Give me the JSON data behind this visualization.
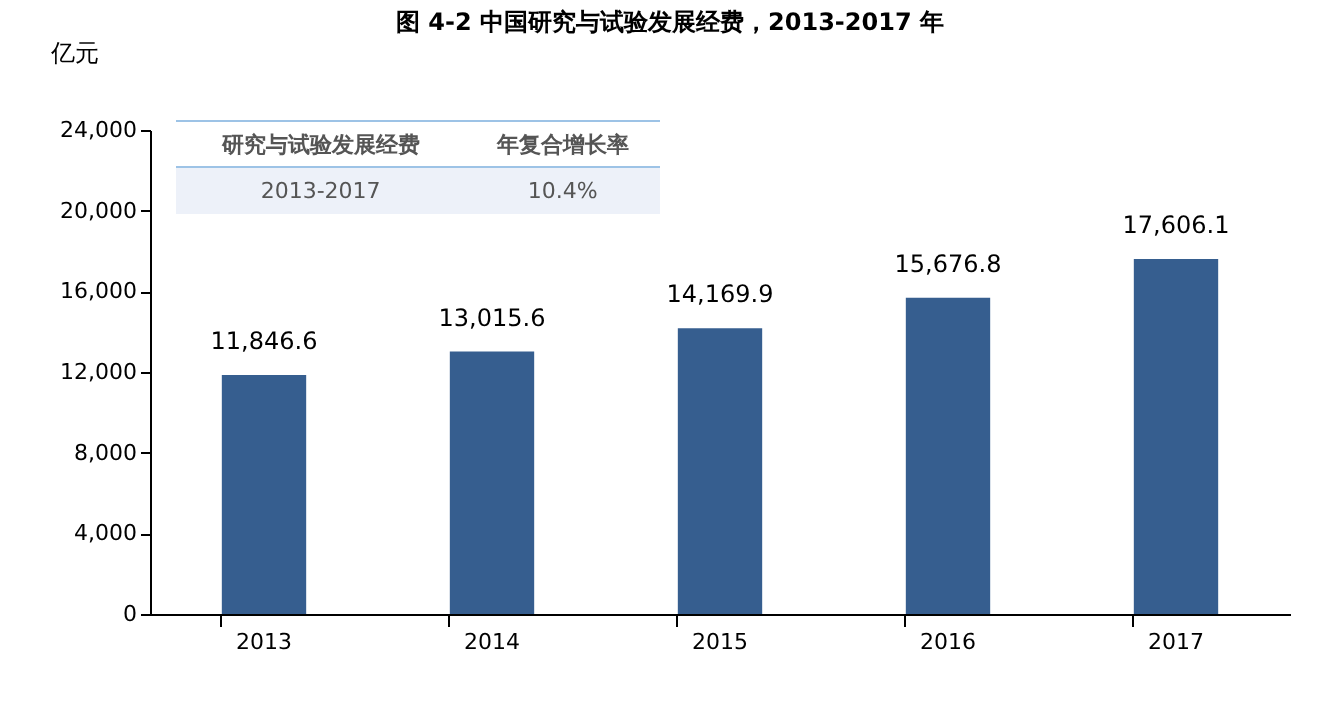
{
  "chart_data": {
    "type": "bar",
    "title": "图  4-2  中国研究与试验发展经费，2013-2017 年",
    "ylabel": "亿元",
    "categories": [
      "2013",
      "2014",
      "2015",
      "2016",
      "2017"
    ],
    "values": [
      11846.6,
      13015.6,
      14169.9,
      15676.8,
      17606.1
    ],
    "value_labels": [
      "11,846.6",
      "13,015.6",
      "14,169.9",
      "15,676.8",
      "17,606.1"
    ],
    "color": "#365e8f",
    "ylim": [
      0,
      24000
    ],
    "yticks": [
      0,
      {
        "value": 4000,
        "label": "4,000"
      },
      {
        "value": 8000,
        "label": "8,000"
      },
      {
        "value": 12000,
        "label": "12,000"
      },
      {
        "value": 16000,
        "label": "16,000"
      },
      {
        "value": 20000,
        "label": "20,000"
      },
      {
        "value": 24000,
        "label": "24,000"
      }
    ],
    "grid": false,
    "annotations": [
      "研究与试验发展经费",
      "年复合增长率",
      "2013-2017",
      "10.4%"
    ]
  }
}
